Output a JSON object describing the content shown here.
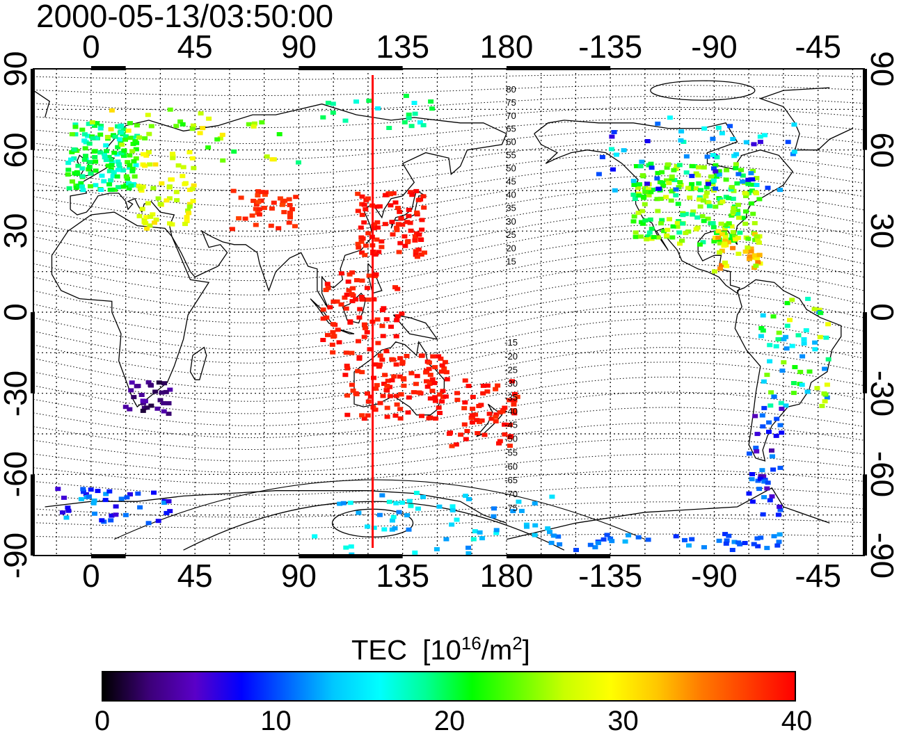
{
  "title": "2000-05-13/03:50:00",
  "colorbar": {
    "label_main": "TEC",
    "label_unit_open": "[10",
    "label_unit_exp": "16",
    "label_unit_mid": "/m",
    "label_unit_exp2": "2",
    "label_unit_close": "]",
    "ticks": [
      "0",
      "10",
      "20",
      "30",
      "40"
    ],
    "colors": [
      "#000000",
      "#3c0078",
      "#5a00c8",
      "#0000ff",
      "#0064ff",
      "#00c8ff",
      "#00ffff",
      "#00ff96",
      "#00ff00",
      "#64ff00",
      "#c8ff00",
      "#ffff00",
      "#ffc800",
      "#ff7800",
      "#ff3c00",
      "#ff0000"
    ]
  },
  "axes": {
    "top_ticks": [
      "0",
      "45",
      "90",
      "135",
      "180",
      "-135",
      "-90",
      "-45"
    ],
    "bottom_ticks": [
      "0",
      "45",
      "90",
      "135",
      "180",
      "-135",
      "-90",
      "-45"
    ],
    "left_ticks": [
      "90",
      "60",
      "30",
      "0",
      "-30",
      "-60",
      "-90"
    ],
    "right_ticks": [
      "90",
      "60",
      "30",
      "0",
      "-30",
      "-60",
      "-90"
    ]
  },
  "contour_labels": [
    "80",
    "75",
    "70",
    "65",
    "60",
    "55",
    "50",
    "45",
    "40",
    "35",
    "30",
    "25",
    "20",
    "15",
    "-15",
    "-20",
    "-25",
    "-30",
    "-35",
    "-40",
    "-45",
    "-50",
    "-55",
    "-60",
    "-65",
    "-70",
    "-75"
  ],
  "meridian_marker": {
    "longitude": 122,
    "color": "#ff0000"
  },
  "map": {
    "projection": "equirectangular",
    "lon_range": [
      -25,
      335
    ],
    "lat_range": [
      -90,
      90
    ],
    "grid": true
  }
}
